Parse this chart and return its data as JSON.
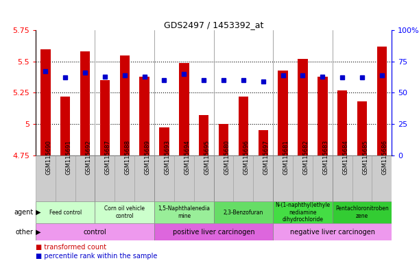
{
  "title": "GDS2497 / 1453392_at",
  "samples": [
    "GSM115690",
    "GSM115691",
    "GSM115692",
    "GSM115687",
    "GSM115688",
    "GSM115689",
    "GSM115693",
    "GSM115694",
    "GSM115695",
    "GSM115680",
    "GSM115696",
    "GSM115697",
    "GSM115681",
    "GSM115682",
    "GSM115683",
    "GSM115684",
    "GSM115685",
    "GSM115686"
  ],
  "bar_values": [
    5.6,
    5.22,
    5.58,
    5.35,
    5.55,
    5.38,
    4.97,
    5.49,
    5.07,
    5.0,
    5.22,
    4.95,
    5.43,
    5.52,
    5.38,
    5.27,
    5.18,
    5.62
  ],
  "dot_values": [
    67,
    62,
    66,
    63,
    64,
    63,
    60,
    65,
    60,
    60,
    60,
    59,
    64,
    64,
    63,
    62,
    62,
    64
  ],
  "ymin": 4.75,
  "ymax": 5.75,
  "yticks": [
    4.75,
    5.0,
    5.25,
    5.5,
    5.75
  ],
  "ytick_labels": [
    "4.75",
    "5",
    "5.25",
    "5.5",
    "5.75"
  ],
  "y2min": 0,
  "y2max": 100,
  "y2ticks": [
    0,
    25,
    50,
    75,
    100
  ],
  "y2tick_labels": [
    "0",
    "25",
    "50",
    "75",
    "100%"
  ],
  "bar_color": "#CC0000",
  "dot_color": "#0000CC",
  "agent_groups": [
    {
      "label": "Feed control",
      "start": 0,
      "end": 3,
      "color": "#ccffcc"
    },
    {
      "label": "Corn oil vehicle\ncontrol",
      "start": 3,
      "end": 6,
      "color": "#ccffcc"
    },
    {
      "label": "1,5-Naphthalenedia\nmine",
      "start": 6,
      "end": 9,
      "color": "#99ee99"
    },
    {
      "label": "2,3-Benzofuran",
      "start": 9,
      "end": 12,
      "color": "#66dd66"
    },
    {
      "label": "N-(1-naphthyl)ethyle\nnediamine\ndihydrochloride",
      "start": 12,
      "end": 15,
      "color": "#44dd44"
    },
    {
      "label": "Pentachloronitroben\nzene",
      "start": 15,
      "end": 18,
      "color": "#33cc33"
    }
  ],
  "other_groups": [
    {
      "label": "control",
      "start": 0,
      "end": 6,
      "color": "#ee99ee"
    },
    {
      "label": "positive liver carcinogen",
      "start": 6,
      "end": 12,
      "color": "#dd66dd"
    },
    {
      "label": "negative liver carcinogen",
      "start": 12,
      "end": 18,
      "color": "#ee99ee"
    }
  ],
  "legend_bar_label": "transformed count",
  "legend_dot_label": "percentile rank within the sample",
  "agent_label": "agent",
  "other_label": "other",
  "grid_separators": [
    2.5,
    5.5,
    8.5,
    11.5,
    14.5
  ],
  "tick_bg_color": "#cccccc",
  "tick_border_color": "#999999"
}
